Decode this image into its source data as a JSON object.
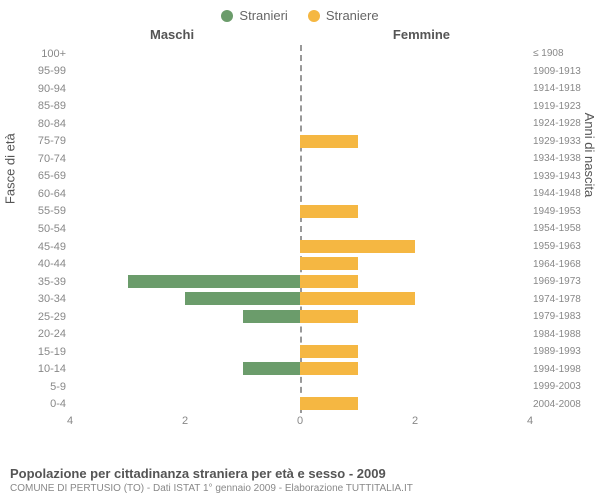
{
  "legend": {
    "male": {
      "label": "Stranieri",
      "color": "#6b9c6b"
    },
    "female": {
      "label": "Straniere",
      "color": "#f5b742"
    }
  },
  "headers": {
    "left": "Maschi",
    "right": "Femmine"
  },
  "yLabels": {
    "left": "Fasce di età",
    "right": "Anni di nascita"
  },
  "chart": {
    "type": "bar",
    "xMax": 4,
    "xTicks": [
      4,
      2,
      0,
      2,
      4
    ],
    "barColorM": "#6b9c6b",
    "barColorF": "#f5b742",
    "centerLineColor": "#999",
    "rows": [
      {
        "age": "100+",
        "birth": "≤ 1908",
        "m": 0,
        "f": 0
      },
      {
        "age": "95-99",
        "birth": "1909-1913",
        "m": 0,
        "f": 0
      },
      {
        "age": "90-94",
        "birth": "1914-1918",
        "m": 0,
        "f": 0
      },
      {
        "age": "85-89",
        "birth": "1919-1923",
        "m": 0,
        "f": 0
      },
      {
        "age": "80-84",
        "birth": "1924-1928",
        "m": 0,
        "f": 0
      },
      {
        "age": "75-79",
        "birth": "1929-1933",
        "m": 0,
        "f": 1
      },
      {
        "age": "70-74",
        "birth": "1934-1938",
        "m": 0,
        "f": 0
      },
      {
        "age": "65-69",
        "birth": "1939-1943",
        "m": 0,
        "f": 0
      },
      {
        "age": "60-64",
        "birth": "1944-1948",
        "m": 0,
        "f": 0
      },
      {
        "age": "55-59",
        "birth": "1949-1953",
        "m": 0,
        "f": 1
      },
      {
        "age": "50-54",
        "birth": "1954-1958",
        "m": 0,
        "f": 0
      },
      {
        "age": "45-49",
        "birth": "1959-1963",
        "m": 0,
        "f": 2
      },
      {
        "age": "40-44",
        "birth": "1964-1968",
        "m": 0,
        "f": 1
      },
      {
        "age": "35-39",
        "birth": "1969-1973",
        "m": 3,
        "f": 1
      },
      {
        "age": "30-34",
        "birth": "1974-1978",
        "m": 2,
        "f": 2
      },
      {
        "age": "25-29",
        "birth": "1979-1983",
        "m": 1,
        "f": 1
      },
      {
        "age": "20-24",
        "birth": "1984-1988",
        "m": 0,
        "f": 0
      },
      {
        "age": "15-19",
        "birth": "1989-1993",
        "m": 0,
        "f": 1
      },
      {
        "age": "10-14",
        "birth": "1994-1998",
        "m": 1,
        "f": 1
      },
      {
        "age": "5-9",
        "birth": "1999-2003",
        "m": 0,
        "f": 0
      },
      {
        "age": "0-4",
        "birth": "2004-2008",
        "m": 0,
        "f": 1
      }
    ]
  },
  "footer": {
    "title": "Popolazione per cittadinanza straniera per età e sesso - 2009",
    "subtitle": "COMUNE DI PERTUSIO (TO) - Dati ISTAT 1° gennaio 2009 - Elaborazione TUTTITALIA.IT"
  }
}
